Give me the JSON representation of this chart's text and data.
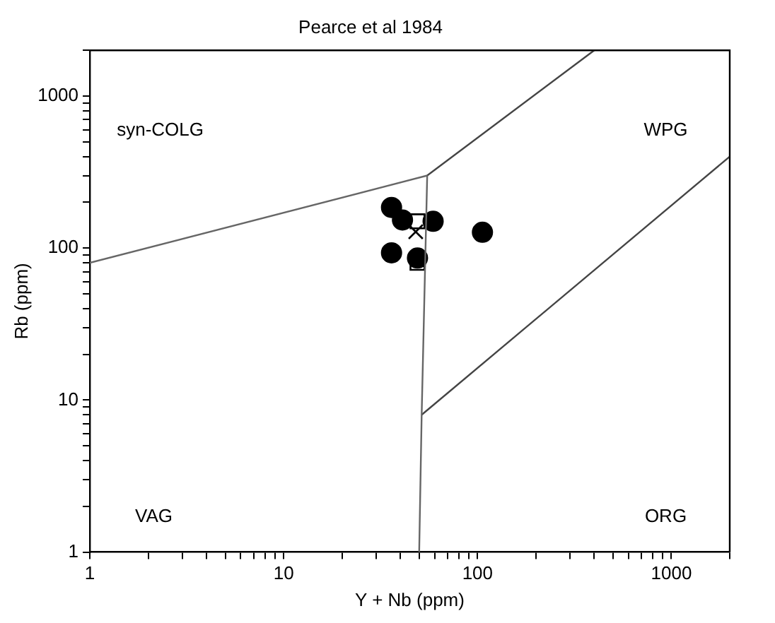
{
  "chart_data": {
    "type": "scatter",
    "title": "Pearce et al 1984",
    "xlabel": "Y + Nb (ppm)",
    "ylabel": "Rb (ppm)",
    "log": "xy",
    "grid": false,
    "legend": false,
    "xlim": [
      1,
      2000
    ],
    "ylim": [
      1,
      2000
    ],
    "xticks": [
      1,
      {
        "value": 2,
        "label": null
      },
      {
        "value": 3,
        "label": null
      },
      {
        "value": 4,
        "label": null
      },
      {
        "value": 5,
        "label": null
      },
      {
        "value": 6,
        "label": null
      },
      {
        "value": 7,
        "label": null
      },
      {
        "value": 8,
        "label": null
      },
      {
        "value": 9,
        "label": null
      },
      10,
      {
        "value": 20,
        "label": null
      },
      {
        "value": 30,
        "label": null
      },
      {
        "value": 40,
        "label": null
      },
      {
        "value": 50,
        "label": null
      },
      {
        "value": 60,
        "label": null
      },
      {
        "value": 70,
        "label": null
      },
      {
        "value": 80,
        "label": null
      },
      {
        "value": 90,
        "label": null
      },
      100,
      {
        "value": 200,
        "label": null
      },
      {
        "value": 300,
        "label": null
      },
      {
        "value": 400,
        "label": null
      },
      {
        "value": 500,
        "label": null
      },
      {
        "value": 600,
        "label": null
      },
      {
        "value": 700,
        "label": null
      },
      {
        "value": 800,
        "label": null
      },
      {
        "value": 900,
        "label": null
      },
      1000,
      {
        "value": 2000,
        "label": null
      }
    ],
    "yticks": [
      1,
      {
        "value": 2,
        "label": null
      },
      {
        "value": 3,
        "label": null
      },
      {
        "value": 4,
        "label": null
      },
      {
        "value": 5,
        "label": null
      },
      {
        "value": 6,
        "label": null
      },
      {
        "value": 7,
        "label": null
      },
      {
        "value": 8,
        "label": null
      },
      {
        "value": 9,
        "label": null
      },
      10,
      {
        "value": 20,
        "label": null
      },
      {
        "value": 30,
        "label": null
      },
      {
        "value": 40,
        "label": null
      },
      {
        "value": 50,
        "label": null
      },
      {
        "value": 60,
        "label": null
      },
      {
        "value": 70,
        "label": null
      },
      {
        "value": 80,
        "label": null
      },
      {
        "value": 90,
        "label": null
      },
      100,
      {
        "value": 200,
        "label": null
      },
      {
        "value": 300,
        "label": null
      },
      {
        "value": 400,
        "label": null
      },
      {
        "value": 500,
        "label": null
      },
      {
        "value": 600,
        "label": null
      },
      {
        "value": 700,
        "label": null
      },
      {
        "value": 800,
        "label": null
      },
      {
        "value": 900,
        "label": null
      },
      1000,
      {
        "value": 2000,
        "label": null
      }
    ],
    "series": [
      {
        "type": "line",
        "color": "#666666",
        "marker": "none",
        "x": [
          1,
          55
        ],
        "values": [
          80,
          300
        ]
      },
      {
        "type": "line",
        "color": "#666666",
        "marker": "none",
        "x": [
          55,
          51.5,
          50
        ],
        "values": [
          300,
          8,
          1
        ]
      },
      {
        "type": "line",
        "color": "#444444",
        "marker": "none",
        "x": [
          55,
          400
        ],
        "values": [
          300,
          2000
        ]
      },
      {
        "type": "line",
        "color": "#444444",
        "marker": "none",
        "x": [
          51.5,
          2000
        ],
        "values": [
          8,
          400
        ]
      },
      {
        "color": "#000000",
        "marker": "circle",
        "x": [
          36,
          41,
          59,
          106,
          36,
          49
        ],
        "values": [
          185,
          153,
          150,
          127,
          93,
          86
        ]
      },
      {
        "color": "#000000",
        "marker": "square",
        "x": [
          49,
          49
        ],
        "values": [
          150,
          80
        ]
      },
      {
        "color": "#000000",
        "marker": "cross",
        "x": [
          48
        ],
        "values": [
          128
        ]
      }
    ],
    "annotations": [
      "syn-COLG",
      "WPG",
      "VAG",
      "ORG"
    ]
  }
}
